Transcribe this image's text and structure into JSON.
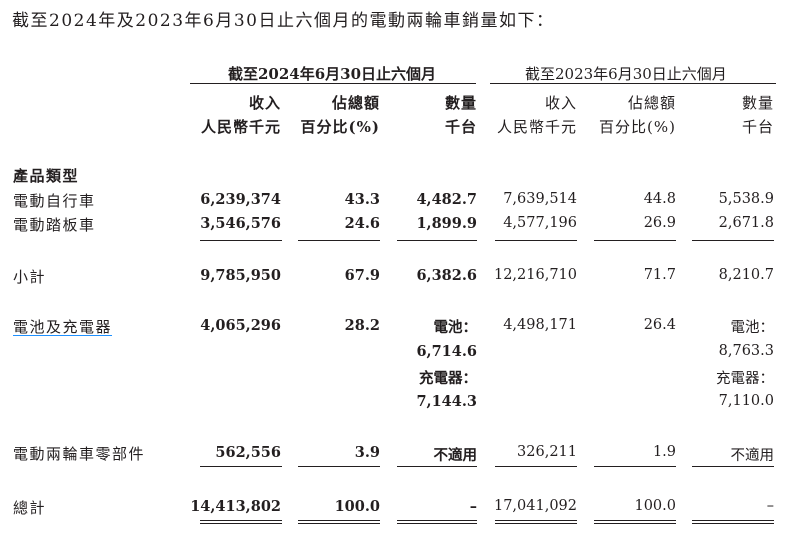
{
  "intro": "截至2024年及2023年6月30日止六個月的電動兩輪車銷量如下：",
  "group_headers": {
    "current": "截至2024年6月30日止六個月",
    "prior": "截至2023年6月30日止六個月"
  },
  "column_headers": {
    "revenue": {
      "line1": "收入",
      "line2": "人民幣千元"
    },
    "share": {
      "line1": "佔總額",
      "line2": "百分比(%)"
    },
    "volume": {
      "line1": "數量",
      "line2": "千台"
    }
  },
  "section_label": "產品類型",
  "rows": {
    "ebike": {
      "label": "電動自行車",
      "c_rev": "6,239,374",
      "c_pct": "43.3",
      "c_vol": "4,482.7",
      "p_rev": "7,639,514",
      "p_pct": "44.8",
      "p_vol": "5,538.9"
    },
    "escooter": {
      "label": "電動踏板車",
      "c_rev": "3,546,576",
      "c_pct": "24.6",
      "c_vol": "1,899.9",
      "p_rev": "4,577,196",
      "p_pct": "26.9",
      "p_vol": "2,671.8"
    },
    "subtotal": {
      "label": "小計",
      "c_rev": "9,785,950",
      "c_pct": "67.9",
      "c_vol": "6,382.6",
      "p_rev": "12,216,710",
      "p_pct": "71.7",
      "p_vol": "8,210.7"
    },
    "battery": {
      "label": "電池及充電器",
      "c_rev": "4,065,296",
      "c_pct": "28.2",
      "p_rev": "4,498,171",
      "p_pct": "26.4",
      "c_battery_label": "電池：",
      "c_battery_vol": "6,714.6",
      "c_charger_label": "充電器：",
      "c_charger_vol": "7,144.3",
      "p_battery_label": "電池：",
      "p_battery_vol": "8,763.3",
      "p_charger_label": "充電器：",
      "p_charger_vol": "7,110.0"
    },
    "parts": {
      "label": "電動兩輪車零部件",
      "c_rev": "562,556",
      "c_pct": "3.9",
      "c_vol": "不適用",
      "p_rev": "326,211",
      "p_pct": "1.9",
      "p_vol": "不適用"
    },
    "total": {
      "label": "總計",
      "c_rev": "14,413,802",
      "c_pct": "100.0",
      "c_vol": "–",
      "p_rev": "17,041,092",
      "p_pct": "100.0",
      "p_vol": "–"
    }
  }
}
